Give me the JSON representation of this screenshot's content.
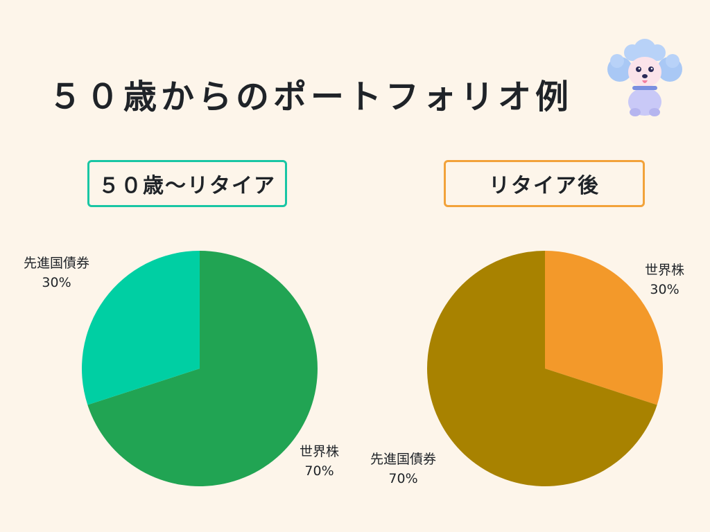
{
  "title": "５０歳からのポートフォリオ例",
  "chart_data": [
    {
      "type": "pie",
      "title": "５０歳〜リタイア",
      "slices": [
        {
          "label": "世界株",
          "value": 70,
          "display": "70%",
          "color": "#21a453"
        },
        {
          "label": "先進国債券",
          "value": 30,
          "display": "30%",
          "color": "#00cfa3"
        }
      ]
    },
    {
      "type": "pie",
      "title": "リタイア後",
      "slices": [
        {
          "label": "世界株",
          "value": 30,
          "display": "30%",
          "color": "#f3992a"
        },
        {
          "label": "先進国債券",
          "value": 70,
          "display": "70%",
          "color": "#a88200"
        }
      ]
    }
  ],
  "colors": {
    "background": "#fdf5ea",
    "left_box_border": "#19c6a4",
    "right_box_border": "#f2a23a"
  },
  "icons": [
    "poodle-mascot-icon"
  ]
}
